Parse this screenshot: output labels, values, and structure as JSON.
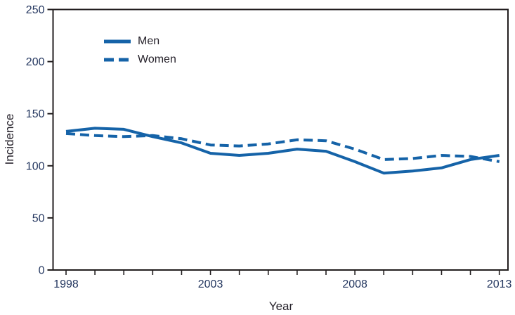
{
  "chart_data": {
    "type": "line",
    "title": "",
    "xlabel": "Year",
    "ylabel": "Incidence",
    "x": [
      1998,
      1999,
      2000,
      2001,
      2002,
      2003,
      2004,
      2005,
      2006,
      2007,
      2008,
      2009,
      2010,
      2011,
      2012,
      2013
    ],
    "series": [
      {
        "name": "Men",
        "style": "solid",
        "values": [
          133,
          136,
          135,
          128,
          122,
          112,
          110,
          112,
          116,
          114,
          104,
          93,
          95,
          98,
          106,
          110
        ]
      },
      {
        "name": "Women",
        "style": "dashed",
        "values": [
          131,
          129,
          128,
          129,
          126,
          120,
          119,
          121,
          125,
          124,
          116,
          106,
          107,
          110,
          109,
          104
        ]
      }
    ],
    "xlim": [
      1997.55,
      2013.3
    ],
    "ylim": [
      0,
      250
    ],
    "yticks": [
      0,
      50,
      100,
      150,
      200,
      250
    ],
    "xtick_labels": [
      1998,
      2003,
      2008,
      2013
    ],
    "xticks_minor_every_year": true,
    "grid": false,
    "legend_position": "inside-top-left",
    "line_color": "#1563a8",
    "axis_color": "#221e1f",
    "tick_label_color": "#23365f",
    "text_color": "#26222b"
  }
}
